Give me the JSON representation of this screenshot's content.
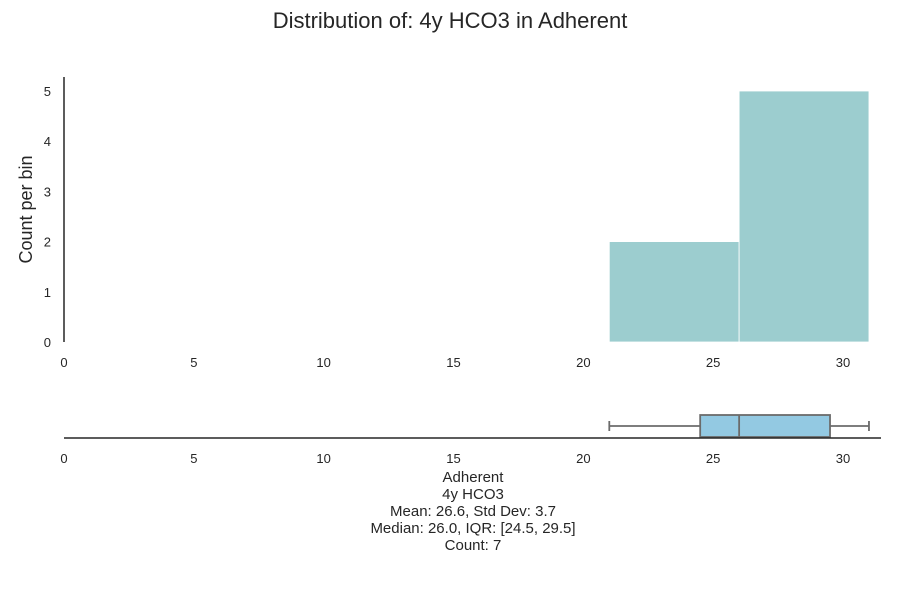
{
  "chart_data": [
    {
      "type": "bar",
      "title": "Distribution of: 4y HCO3 in Adherent",
      "ylabel": "Count per bin",
      "xlim": [
        0,
        31.5
      ],
      "ylim": [
        0,
        5.3
      ],
      "xticks": [
        0,
        5,
        10,
        15,
        20,
        25,
        30
      ],
      "yticks": [
        0,
        1,
        2,
        3,
        4,
        5
      ],
      "bins": [
        {
          "start": 21,
          "end": 26,
          "count": 2
        },
        {
          "start": 26,
          "end": 31,
          "count": 5
        }
      ],
      "bar_color": "#9ccdcf",
      "grid": false
    },
    {
      "type": "boxplot",
      "xlim": [
        0,
        31.5
      ],
      "xticks": [
        0,
        5,
        10,
        15,
        20,
        25,
        30
      ],
      "whisker_low": 21,
      "q1": 24.5,
      "median": 26,
      "q3": 29.5,
      "whisker_high": 31,
      "box_color": "#93c9e2",
      "line_color": "#6b6b6b"
    }
  ],
  "summary": {
    "group": "Adherent",
    "variable": "4y HCO3",
    "mean_sd": "Mean: 26.6, Std Dev: 3.7",
    "median_iqr": "Median: 26.0, IQR: [24.5, 29.5]",
    "count": "Count: 7"
  }
}
